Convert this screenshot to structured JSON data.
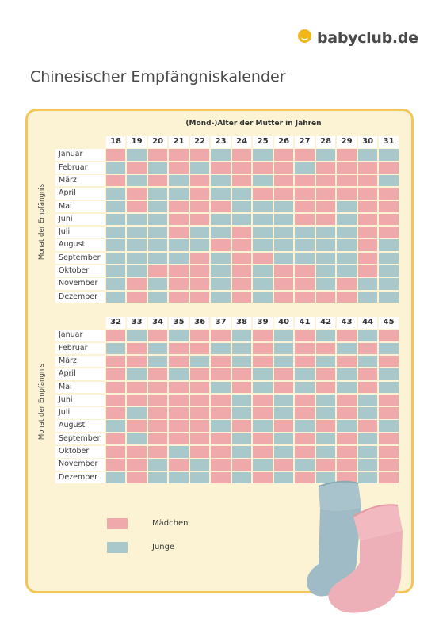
{
  "brand": {
    "name": "babyclub.de"
  },
  "title": "Chinesischer Empfängniskalender",
  "header": "(Mond-)Alter der Mutter in Jahren",
  "month_axis_label": "Monat der Empfängnis",
  "months": [
    "Januar",
    "Februar",
    "März",
    "April",
    "Mai",
    "Juni",
    "Juli",
    "August",
    "September",
    "Oktober",
    "November",
    "Dezember"
  ],
  "legend": [
    {
      "code": "M",
      "label": "Mädchen",
      "color": "#f0a9ab"
    },
    {
      "code": "J",
      "label": "Junge",
      "color": "#a9c8cc"
    }
  ],
  "chart_data": [
    {
      "type": "heatmap",
      "title": "(Mond-)Alter der Mutter in Jahren",
      "ylabel": "Monat der Empfängnis",
      "ages": [
        18,
        19,
        20,
        21,
        22,
        23,
        24,
        25,
        26,
        27,
        28,
        29,
        30,
        31
      ],
      "rows": [
        "MJMMMJMJMMJMJJ",
        "JMJMJMMMMJMMMM",
        "MJMJMJMJMMMMMJ",
        "JMJJMJJMMMMMMM",
        "JMJMMMJJJMMJMM",
        "JJJMMJJJJMMJMM",
        "JJJMJJMJJJJJMM",
        "JJJJJMMJJJJJMJ",
        "JJJJMJMMJJJJMJ",
        "JJMMMJMJMMJJMJ",
        "JMJMMJMJMMJMJJ",
        "JMJMMJMJMMMMJJ"
      ]
    },
    {
      "type": "heatmap",
      "ages": [
        32,
        33,
        34,
        35,
        36,
        37,
        38,
        39,
        40,
        41,
        42,
        43,
        44,
        45
      ],
      "rows": [
        "MJMJMMJMJMJMJM",
        "JMJMMJJMJMMJMJ",
        "MMJMJMJMJMJMJM",
        "MJMJMMMJMJMJMJ",
        "MMMMMJMJMJMJMJ",
        "MMMMMMJMJMJMJM",
        "MJMMMMJMJMJMJM",
        "JMMMMJMJMJMJMJ",
        "MJMMMMJMJMJMJM",
        "MMMJMMJMJMJMJM",
        "MMJMJMMJMJMMJM",
        "JMJJJMJMJMJMJM"
      ]
    }
  ]
}
